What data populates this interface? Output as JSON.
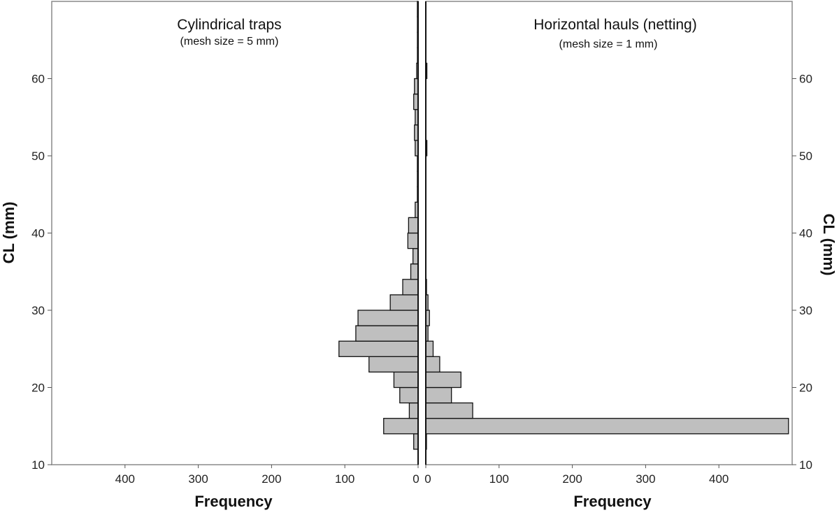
{
  "chart_data": {
    "type": "bar",
    "orientation": "horizontal-mirrored",
    "y_axis": {
      "label": "CL (mm)",
      "range": [
        10,
        70
      ],
      "ticks": [
        10,
        20,
        30,
        40,
        50,
        60
      ],
      "tick_labels": [
        "10",
        "20",
        "30",
        "40",
        "50",
        "60"
      ]
    },
    "x_axis": {
      "label": "Frequency",
      "range": [
        0,
        500
      ],
      "ticks": [
        0,
        100,
        200,
        300,
        400
      ],
      "tick_labels": [
        "0",
        "100",
        "200",
        "300",
        "400"
      ]
    },
    "bin_width": 2,
    "bar_color": "#bfbfbf",
    "panels": [
      {
        "side": "left",
        "title": "Cylindrical traps",
        "subtitle": "(mesh size = 5 mm)",
        "bins": [
          {
            "start": 12,
            "value": 6
          },
          {
            "start": 14,
            "value": 47
          },
          {
            "start": 16,
            "value": 12
          },
          {
            "start": 18,
            "value": 25
          },
          {
            "start": 20,
            "value": 33
          },
          {
            "start": 22,
            "value": 67
          },
          {
            "start": 24,
            "value": 108
          },
          {
            "start": 26,
            "value": 85
          },
          {
            "start": 28,
            "value": 82
          },
          {
            "start": 30,
            "value": 38
          },
          {
            "start": 32,
            "value": 21
          },
          {
            "start": 34,
            "value": 10
          },
          {
            "start": 36,
            "value": 7
          },
          {
            "start": 38,
            "value": 14
          },
          {
            "start": 40,
            "value": 13
          },
          {
            "start": 42,
            "value": 4
          },
          {
            "start": 44,
            "value": 1
          },
          {
            "start": 46,
            "value": 1
          },
          {
            "start": 48,
            "value": 1
          },
          {
            "start": 50,
            "value": 4
          },
          {
            "start": 52,
            "value": 5
          },
          {
            "start": 54,
            "value": 4
          },
          {
            "start": 56,
            "value": 6
          },
          {
            "start": 58,
            "value": 5
          },
          {
            "start": 60,
            "value": 2
          },
          {
            "start": 62,
            "value": 0.5
          },
          {
            "start": 64,
            "value": 0.5
          },
          {
            "start": 66,
            "value": 0.5
          },
          {
            "start": 68,
            "value": 1
          }
        ]
      },
      {
        "side": "right",
        "title": "Horizontal hauls (netting)",
        "subtitle": "(mesh size = 1 mm)",
        "bins": [
          {
            "start": 12,
            "value": 0.5
          },
          {
            "start": 14,
            "value": 495
          },
          {
            "start": 16,
            "value": 64
          },
          {
            "start": 18,
            "value": 35
          },
          {
            "start": 20,
            "value": 48
          },
          {
            "start": 22,
            "value": 19
          },
          {
            "start": 24,
            "value": 10
          },
          {
            "start": 26,
            "value": 3
          },
          {
            "start": 28,
            "value": 5
          },
          {
            "start": 30,
            "value": 3
          },
          {
            "start": 32,
            "value": 1
          },
          {
            "start": 50,
            "value": 1.5
          },
          {
            "start": 60,
            "value": 1.5
          }
        ]
      }
    ]
  }
}
